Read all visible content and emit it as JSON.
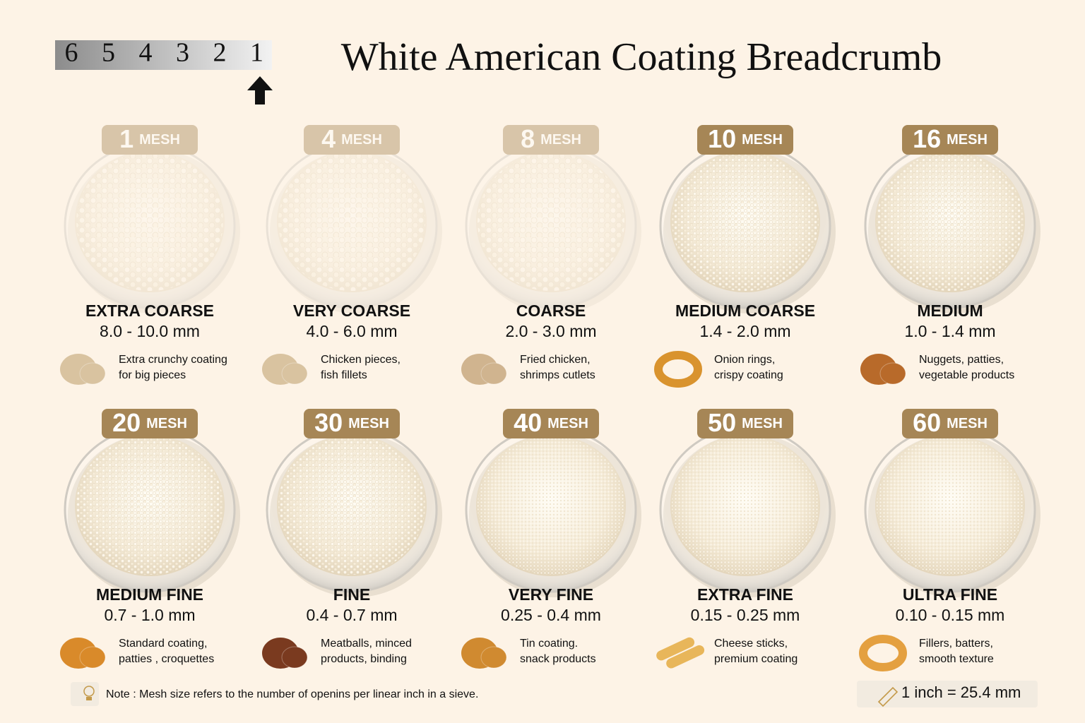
{
  "header": {
    "scale": [
      "6",
      "5",
      "4",
      "3",
      "2",
      "1"
    ],
    "title": "White American Coating Breadcrumb"
  },
  "items": [
    {
      "mesh": "1",
      "unit": "MESH",
      "name": "EXTRA COARSE",
      "range": "8.0 - 10.0 mm",
      "use": [
        "Extra crunchy coating",
        "for big pieces"
      ]
    },
    {
      "mesh": "4",
      "unit": "MESH",
      "name": "VERY COARSE",
      "range": "4.0 - 6.0 mm",
      "use": [
        "Chicken pieces,",
        "fish fillets"
      ]
    },
    {
      "mesh": "8",
      "unit": "MESH",
      "name": "COARSE",
      "range": "2.0 - 3.0 mm",
      "use": [
        "Fried chicken,",
        "shrimps cutlets"
      ]
    },
    {
      "mesh": "10",
      "unit": "MESH",
      "name": "MEDIUM COARSE",
      "range": "1.4 - 2.0 mm",
      "use": [
        "Onion rings,",
        "crispy coating"
      ]
    },
    {
      "mesh": "16",
      "unit": "MESH",
      "name": "MEDIUM",
      "range": "1.0 - 1.4 mm",
      "use": [
        "Nuggets, patties,",
        "vegetable products"
      ]
    },
    {
      "mesh": "20",
      "unit": "MESH",
      "name": "MEDIUM FINE",
      "range": "0.7 - 1.0 mm",
      "use": [
        "Standard coating,",
        "patties , croquettes"
      ]
    },
    {
      "mesh": "30",
      "unit": "MESH",
      "name": "FINE",
      "range": "0.4 - 0.7 mm",
      "use": [
        "Meatballs, minced",
        "products, binding"
      ]
    },
    {
      "mesh": "40",
      "unit": "MESH",
      "name": "VERY FINE",
      "range": "0.25 - 0.4 mm",
      "use": [
        "Tin coating.",
        "snack products"
      ]
    },
    {
      "mesh": "50",
      "unit": "MESH",
      "name": "EXTRA FINE",
      "range": "0.15 - 0.25 mm",
      "use": [
        "Cheese sticks,",
        "premium coating"
      ]
    },
    {
      "mesh": "60",
      "unit": "MESH",
      "name": "ULTRA FINE",
      "range": "0.10 - 0.15 mm",
      "use": [
        "Fillers, batters,",
        "smooth texture"
      ]
    }
  ],
  "footer": {
    "note": "Note : Mesh size refers to the number of openins per linear inch in a sieve.",
    "conversion": "1 inch = 25.4 mm"
  }
}
